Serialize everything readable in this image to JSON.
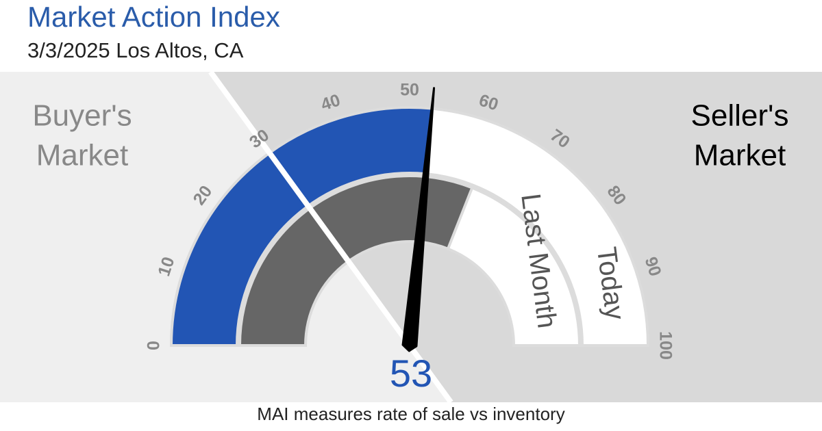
{
  "chart_data": {
    "type": "gauge",
    "title": "Market Action Index",
    "subtitle": "3/3/2025 Los Altos, CA",
    "footer": "MAI measures rate of sale vs inventory",
    "buyer_label": [
      "Buyer's",
      "Market"
    ],
    "seller_label": [
      "Seller's",
      "Market"
    ],
    "ylim": [
      0,
      100
    ],
    "yticks": [
      0,
      10,
      20,
      30,
      40,
      50,
      60,
      70,
      80,
      90,
      100
    ],
    "threshold": 30,
    "value": 53,
    "series": [
      {
        "name": "Today",
        "color": "#2255b4",
        "value": 53
      },
      {
        "name": "Last Month",
        "color": "#666666",
        "value": 62
      }
    ]
  }
}
